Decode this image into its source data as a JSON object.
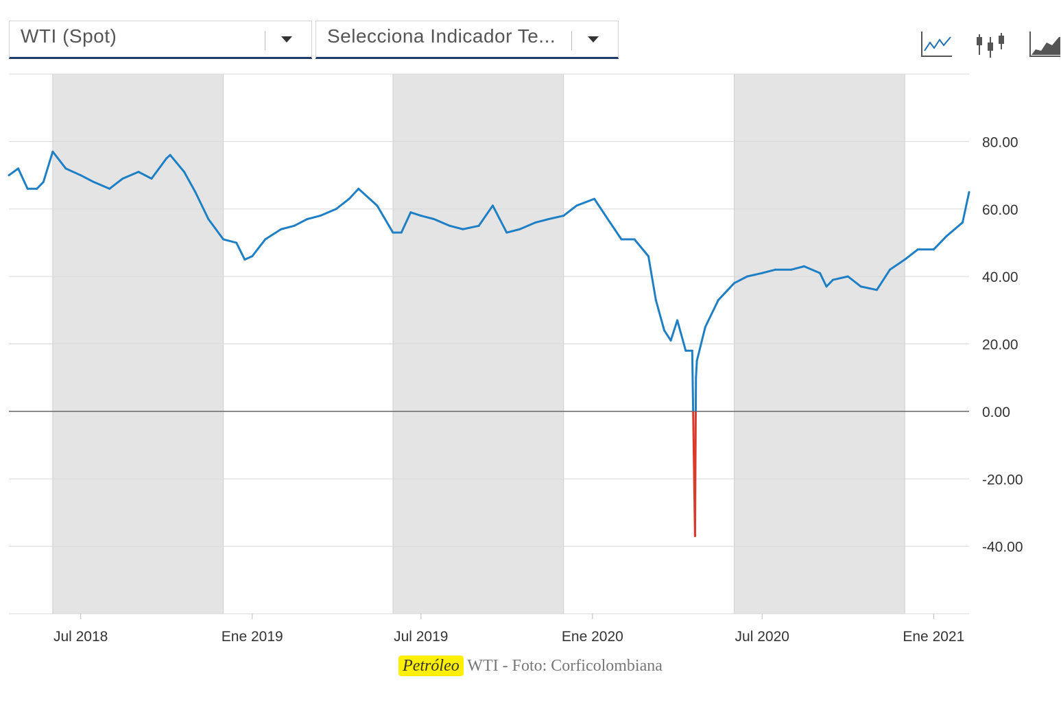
{
  "controls": {
    "series_select": "WTI (Spot)",
    "indicator_select": "Selecciona Indicador Te..."
  },
  "toolbar": {
    "icons": [
      "line-chart-icon",
      "candlestick-chart-icon",
      "area-chart-icon"
    ]
  },
  "caption": {
    "keyword": "Petróleo",
    "text": "WTI - Foto: Corficolombiana"
  },
  "colors": {
    "line": "#1f7fc4",
    "negative": "#d93a2b",
    "band": "#e4e4e4",
    "grid": "#d8d8d8",
    "zero": "#666666"
  },
  "chart_data": {
    "type": "line",
    "title": "",
    "xlabel": "",
    "ylabel": "",
    "ylim": [
      -60,
      100
    ],
    "yticks": [
      "80.00",
      "60.00",
      "40.00",
      "20.00",
      "0.00",
      "-20.00",
      "-40.00"
    ],
    "xlim": [
      "2018-04-15",
      "2021-02-08"
    ],
    "xticks": [
      {
        "date": "2018-07-01",
        "label": "Jul 2018"
      },
      {
        "date": "2019-01-01",
        "label": "Ene 2019"
      },
      {
        "date": "2019-07-01",
        "label": "Jul 2019"
      },
      {
        "date": "2020-01-01",
        "label": "Ene 2020"
      },
      {
        "date": "2020-07-01",
        "label": "Jul 2020"
      },
      {
        "date": "2021-01-01",
        "label": "Ene 2021"
      }
    ],
    "shaded_periods": [
      [
        "2018-06-01",
        "2018-12-01"
      ],
      [
        "2019-06-01",
        "2019-12-01"
      ],
      [
        "2020-06-01",
        "2020-12-01"
      ]
    ],
    "grid": true,
    "legend": "none",
    "series": [
      {
        "x": [
          "2018-04-15",
          "2018-04-25",
          "2018-05-05",
          "2018-05-15",
          "2018-05-22",
          "2018-06-01",
          "2018-06-15",
          "2018-07-01",
          "2018-07-15",
          "2018-08-01",
          "2018-08-15",
          "2018-09-01",
          "2018-09-15",
          "2018-10-01",
          "2018-10-05",
          "2018-10-20",
          "2018-11-01",
          "2018-11-15",
          "2018-12-01",
          "2018-12-15",
          "2018-12-24",
          "2019-01-01",
          "2019-01-15",
          "2019-02-01",
          "2019-02-15",
          "2019-03-01",
          "2019-03-15",
          "2019-04-01",
          "2019-04-15",
          "2019-04-25",
          "2019-05-15",
          "2019-06-01",
          "2019-06-10",
          "2019-06-20",
          "2019-07-01",
          "2019-07-15",
          "2019-08-01",
          "2019-08-15",
          "2019-09-01",
          "2019-09-16",
          "2019-10-01",
          "2019-10-15",
          "2019-11-01",
          "2019-11-15",
          "2019-12-01",
          "2019-12-15",
          "2020-01-03",
          "2020-01-15",
          "2020-02-01",
          "2020-02-15",
          "2020-03-01",
          "2020-03-09",
          "2020-03-18",
          "2020-03-25",
          "2020-04-01",
          "2020-04-10",
          "2020-04-17",
          "2020-04-20",
          "2020-04-21",
          "2020-04-22",
          "2020-05-01",
          "2020-05-15",
          "2020-06-01",
          "2020-06-15",
          "2020-07-01",
          "2020-07-15",
          "2020-08-01",
          "2020-08-15",
          "2020-09-01",
          "2020-09-08",
          "2020-09-15",
          "2020-10-01",
          "2020-10-15",
          "2020-11-01",
          "2020-11-15",
          "2020-12-01",
          "2020-12-15",
          "2021-01-01",
          "2021-01-15",
          "2021-02-01",
          "2021-02-08"
        ],
        "y": [
          70,
          72,
          66,
          66,
          68,
          77,
          72,
          70,
          68,
          66,
          69,
          71,
          69,
          75,
          76,
          71,
          65,
          57,
          51,
          50,
          45,
          46,
          51,
          54,
          55,
          57,
          58,
          60,
          63,
          66,
          61,
          53,
          53,
          59,
          58,
          57,
          55,
          54,
          55,
          61,
          53,
          54,
          56,
          57,
          58,
          61,
          63,
          58,
          51,
          51,
          46,
          33,
          24,
          21,
          27,
          18,
          18,
          -37,
          10,
          15,
          25,
          33,
          38,
          40,
          41,
          42,
          42,
          43,
          41,
          37,
          39,
          40,
          37,
          36,
          42,
          45,
          48,
          48,
          52,
          56,
          65
        ]
      }
    ]
  }
}
